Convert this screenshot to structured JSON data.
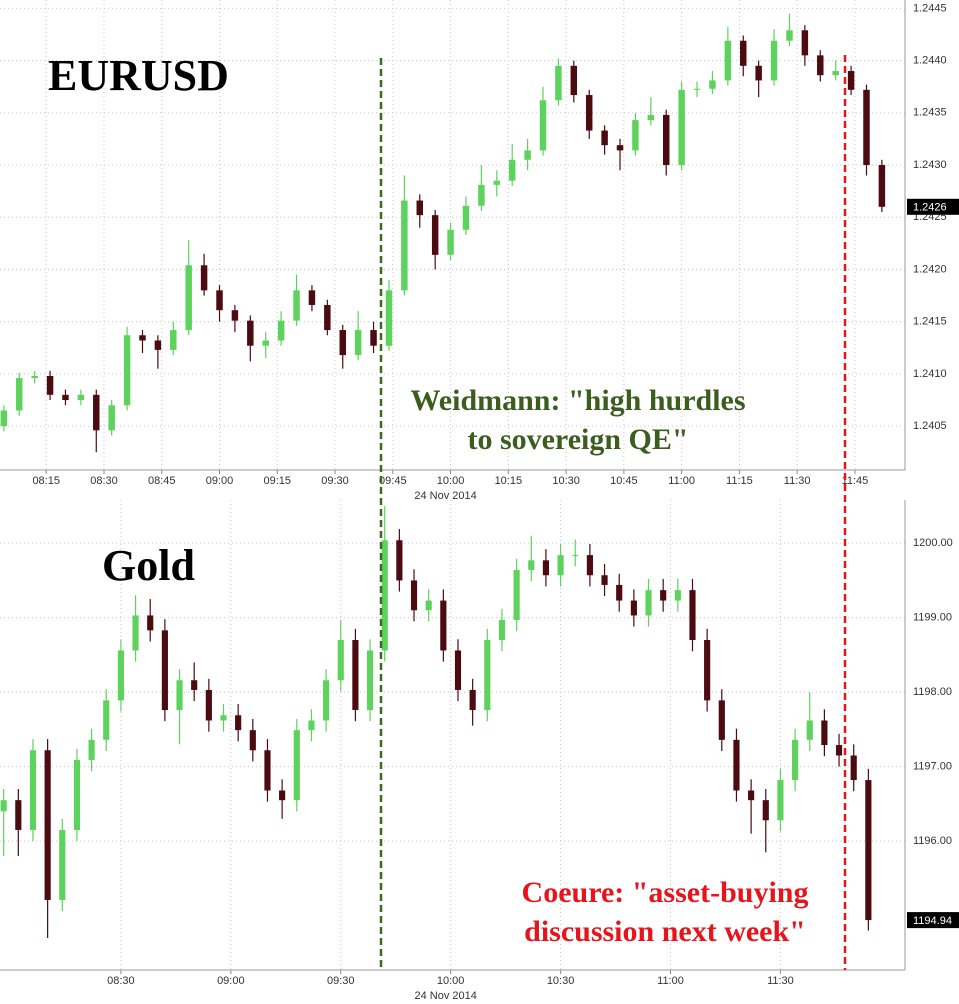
{
  "chart_data": [
    {
      "type": "candlestick",
      "title": "EURUSD",
      "x_label": "24 Nov 2014",
      "up_color": "#5dd35d",
      "down_color": "#4b0b10",
      "grid": true,
      "x": [
        "08:04",
        "08:08",
        "08:12",
        "08:16",
        "08:20",
        "08:24",
        "08:28",
        "08:32",
        "08:36",
        "08:40",
        "08:44",
        "08:48",
        "08:52",
        "08:56",
        "09:00",
        "09:04",
        "09:08",
        "09:12",
        "09:16",
        "09:20",
        "09:24",
        "09:28",
        "09:32",
        "09:36",
        "09:40",
        "09:44",
        "09:48",
        "09:52",
        "09:56",
        "10:00",
        "10:04",
        "10:08",
        "10:12",
        "10:16",
        "10:20",
        "10:24",
        "10:28",
        "10:32",
        "10:36",
        "10:40",
        "10:44",
        "10:48",
        "10:52",
        "10:56",
        "11:00",
        "11:04",
        "11:08",
        "11:12",
        "11:16",
        "11:20",
        "11:24",
        "11:28",
        "11:32",
        "11:36",
        "11:40",
        "11:44",
        "11:48",
        "11:52"
      ],
      "open": [
        1.2405,
        1.24065,
        1.24096,
        1.24098,
        1.2408,
        1.24075,
        1.2408,
        1.24046,
        1.2407,
        1.24137,
        1.24132,
        1.24123,
        1.24142,
        1.24204,
        1.2418,
        1.24161,
        1.24151,
        1.24127,
        1.24132,
        1.24151,
        1.2418,
        1.24166,
        1.24142,
        1.24118,
        1.24142,
        1.24127,
        1.2418,
        1.24266,
        1.24252,
        1.24214,
        1.24238,
        1.24261,
        1.24281,
        1.24285,
        1.24305,
        1.24314,
        1.24362,
        1.24395,
        1.24367,
        1.24333,
        1.24319,
        1.24314,
        1.24343,
        1.24348,
        1.243,
        1.24372,
        1.24373,
        1.24381,
        1.24419,
        1.24395,
        1.24381,
        1.24419,
        1.24429,
        1.24405,
        1.24386,
        1.2439,
        1.24372,
        1.243
      ],
      "high": [
        1.2407,
        1.24101,
        1.24103,
        1.24103,
        1.24085,
        1.24085,
        1.24085,
        1.24075,
        1.24145,
        1.24142,
        1.24137,
        1.2415,
        1.24228,
        1.24215,
        1.24185,
        1.24166,
        1.24156,
        1.2414,
        1.2416,
        1.24195,
        1.24185,
        1.24171,
        1.24147,
        1.2416,
        1.2415,
        1.2419,
        1.2429,
        1.24272,
        1.24257,
        1.24245,
        1.2427,
        1.243,
        1.24295,
        1.2432,
        1.24325,
        1.24375,
        1.24402,
        1.244,
        1.24372,
        1.24338,
        1.24325,
        1.2435,
        1.24365,
        1.24353,
        1.2438,
        1.2438,
        1.2439,
        1.24432,
        1.24424,
        1.244,
        1.2443,
        1.24445,
        1.24434,
        1.2441,
        1.244,
        1.24395,
        1.24377,
        1.24305
      ],
      "low": [
        1.24045,
        1.2406,
        1.24091,
        1.24075,
        1.2407,
        1.2407,
        1.24025,
        1.24041,
        1.24065,
        1.2412,
        1.24105,
        1.24118,
        1.24137,
        1.24175,
        1.2415,
        1.2414,
        1.24112,
        1.24115,
        1.24127,
        1.24146,
        1.2416,
        1.24137,
        1.24105,
        1.24113,
        1.2412,
        1.24122,
        1.24175,
        1.2424,
        1.242,
        1.24209,
        1.24233,
        1.24256,
        1.2427,
        1.2428,
        1.24295,
        1.24309,
        1.24357,
        1.2436,
        1.24325,
        1.2431,
        1.24295,
        1.24309,
        1.24338,
        1.2429,
        1.24295,
        1.24365,
        1.24368,
        1.24376,
        1.24385,
        1.24365,
        1.24376,
        1.24414,
        1.24395,
        1.2438,
        1.24381,
        1.24367,
        1.2429,
        1.24255
      ],
      "close": [
        1.24065,
        1.24096,
        1.24098,
        1.2408,
        1.24075,
        1.2408,
        1.24046,
        1.2407,
        1.24137,
        1.24132,
        1.24123,
        1.24142,
        1.24204,
        1.2418,
        1.24161,
        1.24151,
        1.24127,
        1.24132,
        1.24151,
        1.2418,
        1.24166,
        1.24142,
        1.24118,
        1.24142,
        1.24127,
        1.2418,
        1.24266,
        1.24252,
        1.24214,
        1.24238,
        1.24261,
        1.24281,
        1.24285,
        1.24305,
        1.24314,
        1.24362,
        1.24395,
        1.24367,
        1.24333,
        1.24319,
        1.24314,
        1.24343,
        1.24348,
        1.243,
        1.24372,
        1.24373,
        1.24381,
        1.24419,
        1.24395,
        1.24381,
        1.24419,
        1.24429,
        1.24405,
        1.24386,
        1.2439,
        1.24372,
        1.243,
        1.2426
      ],
      "last_price": 1.2426,
      "xlim": [
        "08:03",
        "11:58"
      ],
      "xticks": [
        "08:15",
        "08:30",
        "08:45",
        "09:00",
        "09:15",
        "09:30",
        "09:45",
        "10:00",
        "10:15",
        "10:30",
        "10:45",
        "11:00",
        "11:15",
        "11:30",
        "11:45"
      ],
      "ylim": [
        1.24008,
        1.24458
      ],
      "yticks": [
        1.2445,
        {
          "value": 1.244,
          "label": "1.2440"
        },
        1.2435,
        {
          "value": 1.243,
          "label": "1.2430"
        },
        1.2425,
        {
          "value": 1.242,
          "label": "1.2420"
        },
        1.2415,
        {
          "value": 1.241,
          "label": "1.2410"
        },
        1.2405
      ]
    },
    {
      "type": "candlestick",
      "title": "Gold",
      "x_label": "24 Nov 2014",
      "up_color": "#5dd35d",
      "down_color": "#4b0b10",
      "grid": true,
      "x": [
        "07:58",
        "08:02",
        "08:06",
        "08:10",
        "08:14",
        "08:18",
        "08:22",
        "08:26",
        "08:30",
        "08:34",
        "08:38",
        "08:42",
        "08:46",
        "08:50",
        "08:54",
        "08:58",
        "09:02",
        "09:06",
        "09:10",
        "09:14",
        "09:18",
        "09:22",
        "09:26",
        "09:30",
        "09:34",
        "09:38",
        "09:42",
        "09:46",
        "09:50",
        "09:54",
        "09:58",
        "10:02",
        "10:06",
        "10:10",
        "10:14",
        "10:18",
        "10:22",
        "10:26",
        "10:30",
        "10:34",
        "10:38",
        "10:42",
        "10:46",
        "10:50",
        "10:54",
        "10:58",
        "11:02",
        "11:06",
        "11:10",
        "11:14",
        "11:18",
        "11:22",
        "11:26",
        "11:30",
        "11:34",
        "11:38",
        "11:42",
        "11:46",
        "11:50",
        "11:54"
      ],
      "open": [
        1196.4,
        1196.55,
        1196.15,
        1197.22,
        1195.21,
        1196.15,
        1197.09,
        1197.36,
        1197.89,
        1198.56,
        1199.03,
        1198.83,
        1197.76,
        1198.16,
        1198.03,
        1197.62,
        1197.69,
        1197.49,
        1197.22,
        1196.68,
        1196.55,
        1197.49,
        1197.62,
        1198.16,
        1198.7,
        1197.76,
        1198.56,
        1200.04,
        1199.5,
        1199.1,
        1199.23,
        1198.56,
        1198.03,
        1197.76,
        1198.7,
        1198.97,
        1199.64,
        1199.77,
        1199.57,
        1199.84,
        1199.84,
        1199.57,
        1199.44,
        1199.23,
        1199.03,
        1199.37,
        1199.23,
        1199.37,
        1198.7,
        1197.89,
        1197.36,
        1196.68,
        1196.55,
        1196.28,
        1196.82,
        1197.36,
        1197.62,
        1197.29,
        1197.15,
        1196.82
      ],
      "high": [
        1196.7,
        1196.7,
        1197.37,
        1197.37,
        1196.3,
        1197.24,
        1197.51,
        1198.04,
        1198.71,
        1199.3,
        1199.25,
        1198.98,
        1198.31,
        1198.4,
        1198.18,
        1197.84,
        1197.84,
        1197.64,
        1197.37,
        1196.83,
        1197.64,
        1197.77,
        1198.31,
        1198.97,
        1198.85,
        1198.71,
        1200.5,
        1200.19,
        1199.65,
        1199.38,
        1199.38,
        1198.71,
        1198.18,
        1198.85,
        1199.12,
        1199.79,
        1200.1,
        1199.92,
        1199.99,
        1200.05,
        1199.99,
        1199.72,
        1199.59,
        1199.38,
        1199.52,
        1199.52,
        1199.52,
        1199.52,
        1198.85,
        1198.04,
        1197.51,
        1196.83,
        1196.7,
        1196.97,
        1197.51,
        1198,
        1197.77,
        1197.44,
        1197.3,
        1196.97
      ],
      "low": [
        1195.8,
        1195.8,
        1196,
        1194.7,
        1195.06,
        1196,
        1196.94,
        1197.21,
        1197.74,
        1198.41,
        1198.68,
        1197.61,
        1197.3,
        1197.88,
        1197.47,
        1197.47,
        1197.34,
        1197.07,
        1196.53,
        1196.3,
        1196.4,
        1197.34,
        1197.47,
        1198.01,
        1197.61,
        1197.61,
        1198.41,
        1199.35,
        1198.95,
        1198.95,
        1198.41,
        1197.88,
        1197.55,
        1197.61,
        1198.55,
        1198.82,
        1199.49,
        1199.42,
        1199.42,
        1199.69,
        1199.42,
        1199.29,
        1199.08,
        1198.88,
        1198.88,
        1199.08,
        1199.08,
        1198.55,
        1197.74,
        1197.21,
        1196.53,
        1196.1,
        1195.85,
        1196.13,
        1196.67,
        1197.21,
        1197.14,
        1197,
        1196.67,
        1194.8
      ],
      "close": [
        1196.55,
        1196.15,
        1197.22,
        1195.21,
        1196.15,
        1197.09,
        1197.36,
        1197.89,
        1198.56,
        1199.03,
        1198.83,
        1197.76,
        1198.16,
        1198.03,
        1197.62,
        1197.69,
        1197.49,
        1197.22,
        1196.68,
        1196.55,
        1197.49,
        1197.62,
        1198.16,
        1198.7,
        1197.76,
        1198.56,
        1200.04,
        1199.5,
        1199.1,
        1199.23,
        1198.56,
        1198.03,
        1197.76,
        1198.7,
        1198.97,
        1199.64,
        1199.77,
        1199.57,
        1199.84,
        1199.84,
        1199.57,
        1199.44,
        1199.23,
        1199.03,
        1199.37,
        1199.23,
        1199.37,
        1198.7,
        1197.89,
        1197.36,
        1196.68,
        1196.55,
        1196.28,
        1196.82,
        1197.36,
        1197.62,
        1197.29,
        1197.15,
        1196.82,
        1194.94
      ],
      "last_price": 1194.94,
      "xlim": [
        "07:57",
        "12:04"
      ],
      "xticks": [
        "08:30",
        "09:00",
        "09:30",
        "10:00",
        "10:30",
        "11:00",
        "11:30"
      ],
      "ylim": [
        1194.27,
        1200.58
      ],
      "yticks": [
        {
          "value": 1200,
          "label": "1200.00"
        },
        {
          "value": 1199,
          "label": "1199.00"
        },
        {
          "value": 1198,
          "label": "1198.00"
        },
        {
          "value": 1197,
          "label": "1197.00"
        },
        {
          "value": 1196,
          "label": "1196.00"
        }
      ]
    }
  ],
  "annotations": [
    {
      "lines": [
        "Weidmann: \"high hurdles",
        "to sovereign QE\""
      ],
      "color": "#3b5e1f"
    },
    {
      "lines": [
        "Coeure: \"asset-buying",
        "discussion next week\""
      ],
      "color": "#e8141b"
    }
  ]
}
